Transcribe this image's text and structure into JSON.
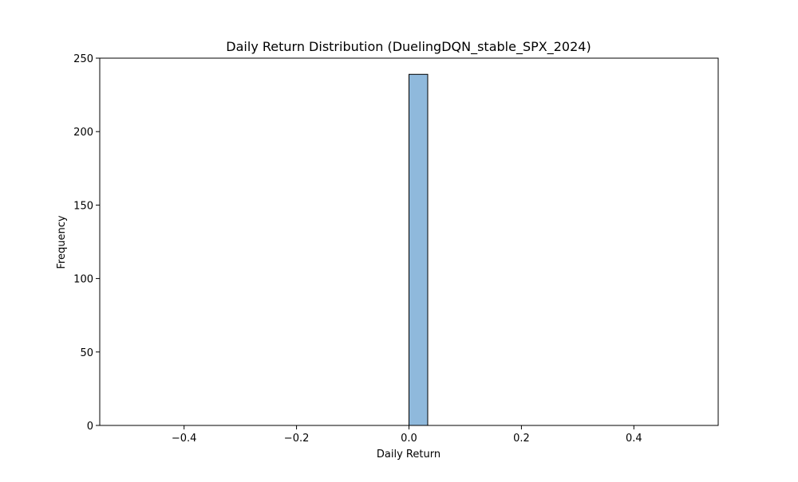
{
  "chart_data": {
    "type": "histogram",
    "title": "Daily Return Distribution (DuelingDQN_stable_SPX_2024)",
    "xlabel": "Daily Return",
    "ylabel": "Frequency",
    "xlim": [
      -0.55,
      0.55
    ],
    "ylim": [
      0,
      250
    ],
    "x_ticks": [
      -0.4,
      -0.2,
      0.0,
      0.2,
      0.4
    ],
    "x_tick_labels": [
      "−0.4",
      "−0.2",
      "0.0",
      "0.2",
      "0.4"
    ],
    "y_ticks": [
      0,
      50,
      100,
      150,
      200,
      250
    ],
    "y_tick_labels": [
      "0",
      "50",
      "100",
      "150",
      "200",
      "250"
    ],
    "bin_range": [
      -0.5,
      0.5
    ],
    "bin_count": 30,
    "bins": [
      {
        "x0": 0.0,
        "x1": 0.0333,
        "count": 239
      }
    ],
    "grid": false,
    "legend": "none",
    "bar_fill": "#8fb9dc",
    "bar_edge": "#000000"
  }
}
